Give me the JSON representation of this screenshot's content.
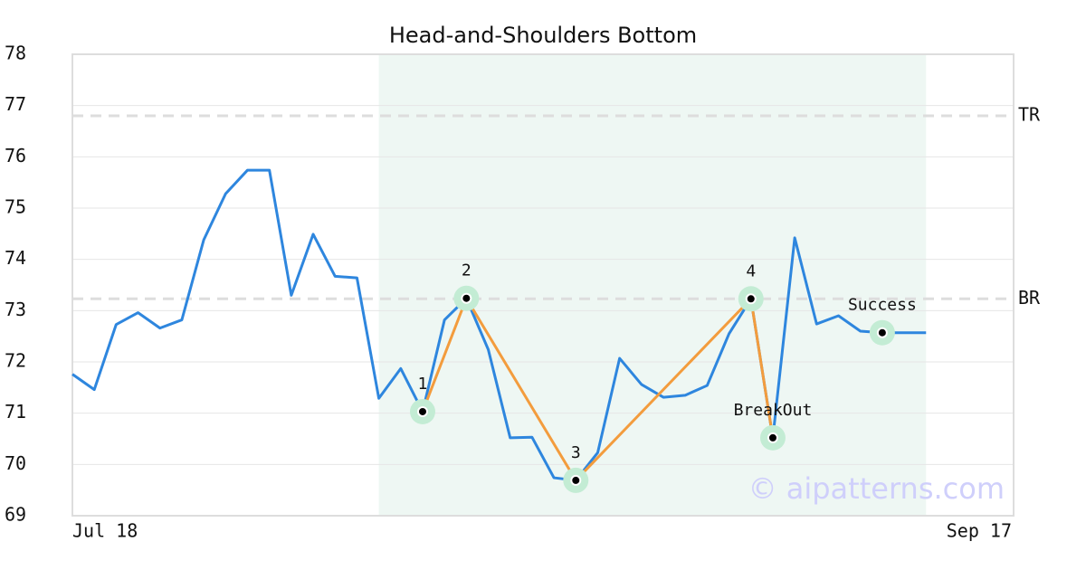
{
  "chart_data": {
    "type": "line",
    "title": "Head-and-Shoulders Bottom",
    "x": [
      0,
      1,
      2,
      3,
      4,
      5,
      6,
      7,
      8,
      9,
      10,
      11,
      12,
      13,
      14,
      15,
      16,
      17,
      18,
      19,
      20,
      21,
      22,
      23,
      24,
      25,
      26,
      27,
      28,
      29,
      30,
      31,
      32,
      33,
      34,
      35,
      36,
      37,
      38,
      39
    ],
    "values": [
      71.76,
      71.46,
      72.73,
      72.96,
      72.66,
      72.82,
      74.38,
      75.28,
      75.74,
      75.74,
      73.3,
      74.49,
      73.67,
      73.64,
      71.29,
      71.87,
      71.03,
      72.82,
      73.24,
      72.24,
      70.52,
      70.53,
      69.74,
      69.69,
      70.23,
      72.07,
      71.56,
      71.31,
      71.35,
      71.54,
      72.55,
      73.23,
      70.52,
      74.42,
      72.74,
      72.9,
      72.6,
      72.57,
      72.57,
      72.57
    ],
    "color": "#2e86de",
    "xlim": [
      0,
      43
    ],
    "xticks": [
      {
        "value": 0,
        "label": "Jul 18"
      },
      {
        "value": 43,
        "label": "Sep 17"
      }
    ],
    "ylim": [
      69,
      78
    ],
    "yticks": [
      69,
      70,
      71,
      72,
      73,
      74,
      75,
      76,
      77,
      78
    ],
    "grid": true,
    "pattern": {
      "region": [
        14,
        39
      ],
      "region_color": "#eef7f3",
      "line_color": "#f39c3d",
      "points": [
        {
          "label": "1",
          "x": 16,
          "y": 71.03
        },
        {
          "label": "2",
          "x": 18,
          "y": 73.24
        },
        {
          "label": "3",
          "x": 23,
          "y": 69.69
        },
        {
          "label": "4",
          "x": 31,
          "y": 73.23
        },
        {
          "label": "BreakOut",
          "x": 32,
          "y": 70.52
        },
        {
          "label": "Success",
          "x": 37,
          "y": 72.57
        }
      ]
    },
    "levels": [
      {
        "label": "TR",
        "value": 76.8
      },
      {
        "label": "BR",
        "value": 73.23
      }
    ],
    "watermark": "© aipatterns.com"
  }
}
